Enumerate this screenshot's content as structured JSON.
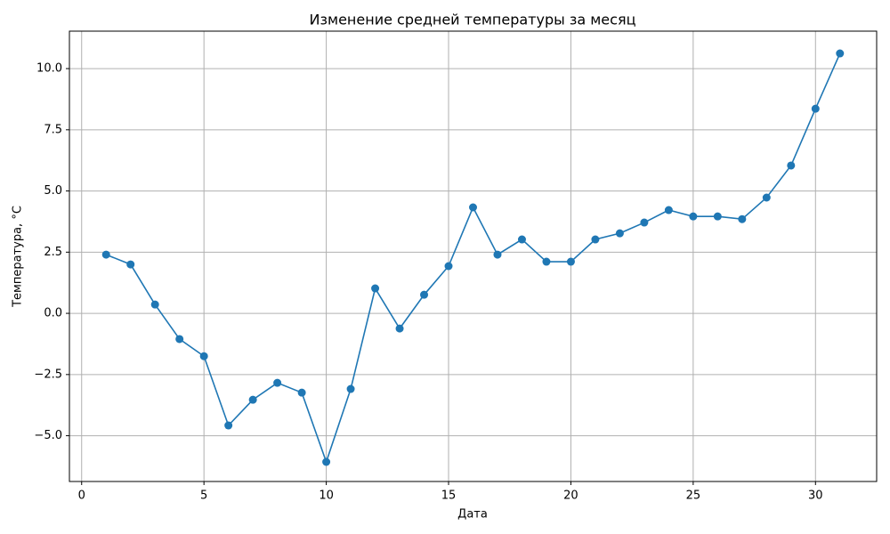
{
  "chart_data": {
    "type": "line",
    "title": "Изменение средней температуры за месяц",
    "x_label": "Дата",
    "y_label": "Температура, °C",
    "x": [
      1,
      2,
      3,
      4,
      5,
      6,
      7,
      8,
      9,
      10,
      11,
      12,
      13,
      14,
      15,
      16,
      17,
      18,
      19,
      20,
      21,
      22,
      23,
      24,
      25,
      26,
      27,
      28,
      29,
      30,
      31
    ],
    "series": [
      {
        "color": "#1f77b4",
        "values": [
          2.4,
          2.0,
          0.36,
          -1.05,
          -1.75,
          -4.58,
          -3.53,
          -2.84,
          -3.24,
          -6.07,
          -3.09,
          1.02,
          -0.62,
          0.76,
          1.93,
          4.33,
          2.4,
          3.02,
          2.11,
          2.11,
          3.02,
          3.27,
          3.71,
          4.22,
          3.96,
          3.96,
          3.85,
          4.73,
          6.04,
          8.36,
          10.62
        ]
      }
    ],
    "xlim": [
      -0.5,
      32.5
    ],
    "ylim": [
      -6.87,
      11.53
    ],
    "xticks": [
      0,
      5,
      10,
      15,
      20,
      25,
      30
    ],
    "yticks": [
      {
        "value": -5,
        "label": "−5.0"
      },
      {
        "value": -2.5,
        "label": "−2.5"
      },
      {
        "value": 0,
        "label": "0.0"
      },
      2.5,
      {
        "value": 5,
        "label": "5.0"
      },
      7.5,
      {
        "value": 10,
        "label": "10.0"
      }
    ],
    "grid": true
  }
}
